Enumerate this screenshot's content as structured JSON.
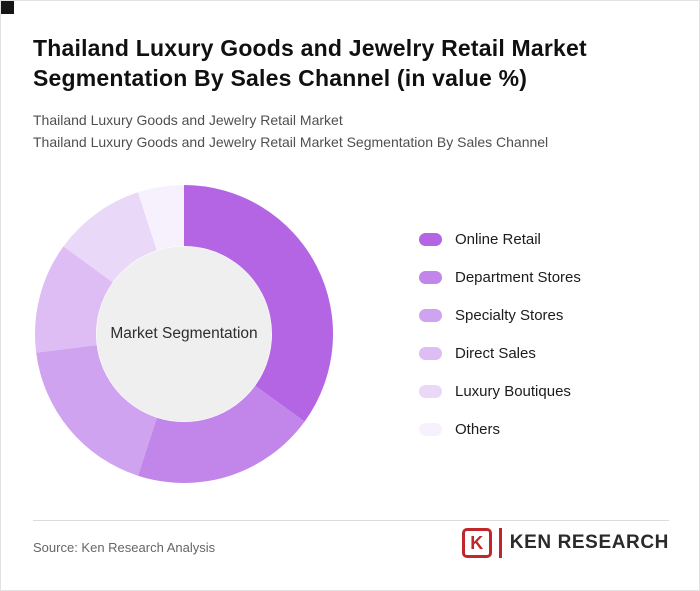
{
  "page": {
    "title": "Thailand Luxury Goods and Jewelry Retail Market Segmentation By Sales Channel (in value %)",
    "subtitle_line1": "Thailand Luxury Goods and Jewelry Retail Market",
    "subtitle_line2": "Thailand Luxury Goods and Jewelry Retail Market Segmentation By Sales Channel"
  },
  "chart_data": {
    "type": "pie",
    "variant": "donut",
    "title": "Thailand Luxury Goods and Jewelry Retail Market Segmentation By Sales Channel (in value %)",
    "center_label": "Market Segmentation",
    "categories": [
      "Online Retail",
      "Department Stores",
      "Specialty Stores",
      "Direct Sales",
      "Luxury Boutiques",
      "Others"
    ],
    "values": [
      35,
      20,
      18,
      12,
      10,
      5
    ],
    "colors": [
      "#b365e3",
      "#c286eb",
      "#d0a3f0",
      "#ddbdf4",
      "#ead8f8",
      "#f7f1fd"
    ],
    "center_fill": "#efefef",
    "legend_position": "right",
    "start_angle_deg": 0
  },
  "footer": {
    "source": "Source: Ken Research Analysis",
    "logo": {
      "letter": "K",
      "text": "KEN RESEARCH",
      "color": "#c0262c"
    }
  }
}
